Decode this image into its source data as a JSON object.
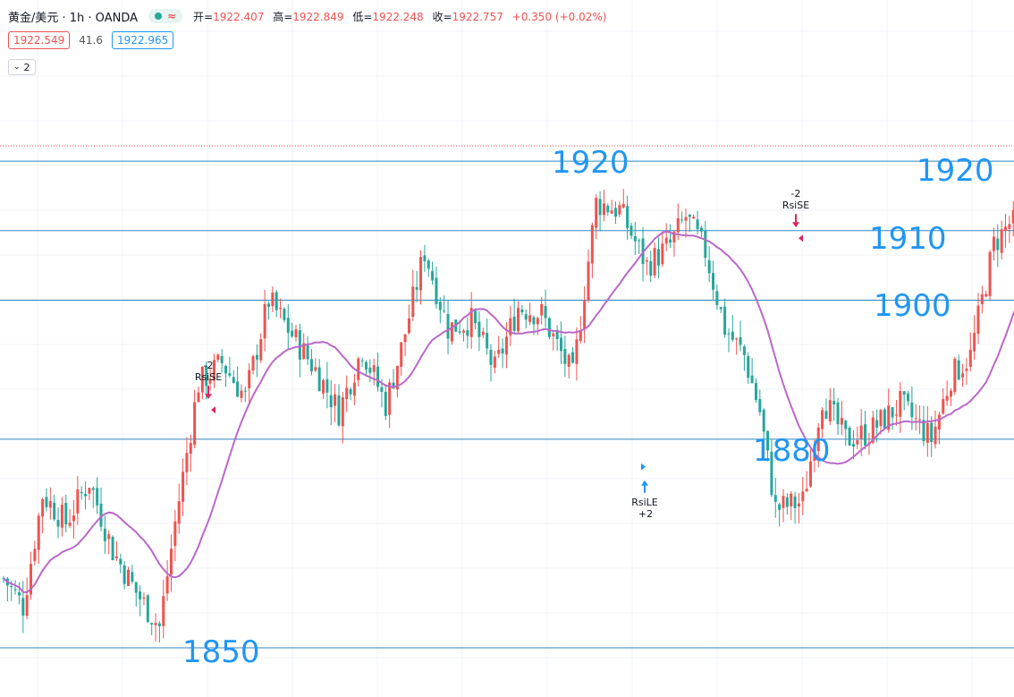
{
  "header": {
    "symbol_title": "黄金/美元 · 1h · OANDA",
    "status_icon": "green-dot",
    "wave_icon": "≈",
    "ohlc": {
      "open_label": "开=",
      "open": "1922.407",
      "high_label": "高=",
      "high": "1922.849",
      "low_label": "低=",
      "low": "1922.248",
      "close_label": "收=",
      "close": "1922.757",
      "change": "+0.350 (+0.02%)"
    }
  },
  "prices": {
    "bid": "1922.549",
    "spread": "41.6",
    "ask": "1922.965"
  },
  "indicator_toggle": {
    "chevron_icon": "chevron-down-icon",
    "count": "2"
  },
  "colors": {
    "up": "#ef5350",
    "down": "#26a69a",
    "ma": "#ba68c8",
    "level_line": "#2e86c1",
    "level_text": "#2196f3",
    "sell_arrow": "#e0245e",
    "buy_arrow": "#2196f3"
  },
  "chart_data": {
    "type": "candlestick",
    "symbol": "XAU/USD",
    "timeframe": "1h",
    "ylim": [
      1846.3,
      1934.7
    ],
    "current_price": 1922.757,
    "moving_average_visible": true,
    "grid": true,
    "levels": [
      {
        "value": 1920,
        "label": "1920",
        "label_side": "right"
      },
      {
        "value": 1910,
        "label": "1910",
        "label_side": "right"
      },
      {
        "value": 1900,
        "label": "1900",
        "label_side": "right"
      },
      {
        "value": 1880,
        "label": "1880",
        "label_side": "right"
      },
      {
        "value": 1850,
        "label": "1850",
        "label_side": "left"
      },
      {
        "value": 1920,
        "label": "1920",
        "label_side": "left"
      }
    ],
    "signals": [
      {
        "type": "sell",
        "name": "RsiSE",
        "qty": "-2",
        "price": 1885.5
      },
      {
        "type": "buy",
        "name": "RsiLE",
        "qty": "+2",
        "price": 1876.8
      },
      {
        "type": "sell",
        "name": "RsiSE",
        "qty": "-2",
        "price": 1910.2
      }
    ]
  }
}
